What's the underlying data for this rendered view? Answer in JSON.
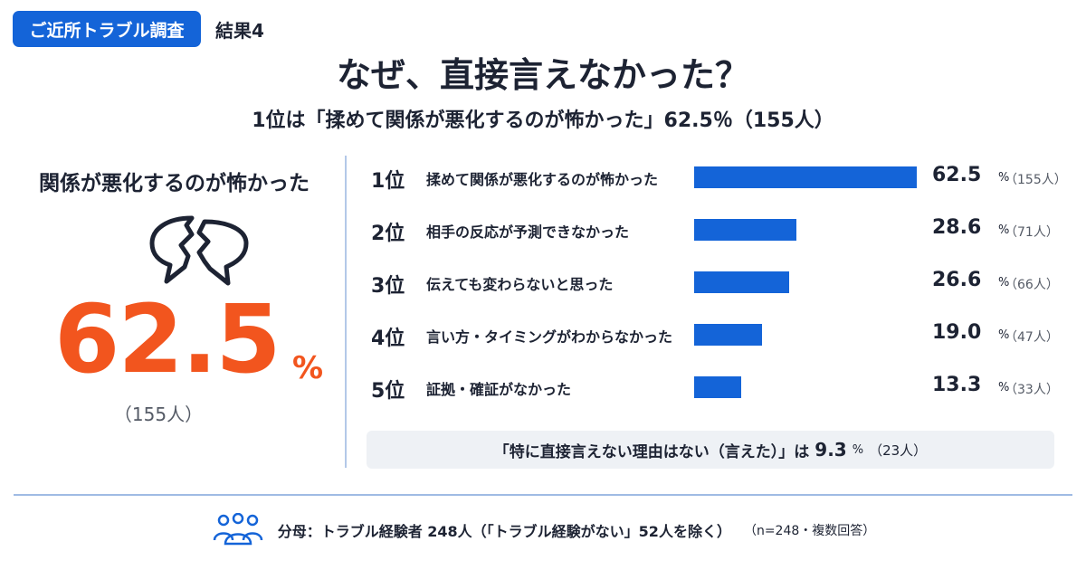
{
  "header": {
    "tag": "ご近所トラブル調査",
    "result_label": "結果4",
    "title": "なぜ、直接言えなかった？",
    "subtitle": "1位は「揉めて関係が悪化するのが怖かった」62.5％（155人）"
  },
  "highlight": {
    "heading": "関係が悪化するのが怖かった",
    "icon": "broken-speech-bubbles-icon",
    "number": "62.5",
    "unit": "%",
    "count": "（155人）",
    "color": "#f2551e"
  },
  "chart_data": {
    "type": "bar",
    "orientation": "horizontal",
    "categories": [
      "揉めて関係が悪化するのが怖かった",
      "相手の反応が予測できなかった",
      "伝えても変わらないと思った",
      "言い方・タイミングがわからなかった",
      "証拠・確証がなかった"
    ],
    "ranks": [
      "1位",
      "2位",
      "3位",
      "4位",
      "5位"
    ],
    "values": [
      62.5,
      28.6,
      26.6,
      19.0,
      13.3
    ],
    "value_labels": [
      "62.5",
      "28.6",
      "26.6",
      "19.0",
      "13.3"
    ],
    "unit": "%",
    "counts": [
      "（155人）",
      "（71人）",
      "（66人）",
      "（47人）",
      "（33人）"
    ],
    "bar_color": "#1464d8",
    "xlim": [
      0,
      62.5
    ]
  },
  "note": {
    "text": "「特に直接言えない理由はない（言えた）」は",
    "value": "9.3",
    "unit": "%",
    "count": "（23人）"
  },
  "footer": {
    "icon": "people-group-icon",
    "text": "分母：トラブル経験者 248人（「トラブル経験がない」52人を除く）",
    "note": "（n=248・複数回答）"
  },
  "colors": {
    "accent": "#1464d8",
    "highlight": "#f2551e",
    "text": "#1d2333"
  }
}
